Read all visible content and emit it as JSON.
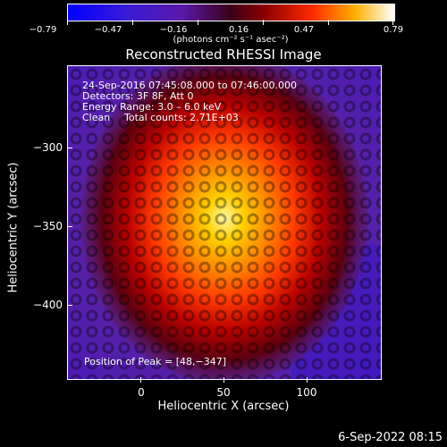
{
  "colorbar": {
    "ticks": [
      "−0.79",
      "−0.47",
      "−0.16",
      "0.16",
      "0.47",
      "0.79"
    ],
    "units": "(photons cm⁻² s⁻¹ asec⁻²)"
  },
  "title": "Reconstructed RHESSI Image",
  "info": {
    "line1": "24-Sep-2016 07:45:08.000 to 07:46:00.000",
    "line2": "Detectors: 3F 8F, Att 0",
    "line3": "Energy Range: 3.0 – 6.0 keV",
    "line4_a": "Clean",
    "line4_b": "Total counts: 2.71E+03"
  },
  "peak_text": "Position of Peak = [48,−347]",
  "axes": {
    "xlabel": "Heliocentric X (arcsec)",
    "ylabel": "Heliocentric Y (arcsec)",
    "xticks": [
      "0",
      "50",
      "100"
    ],
    "yticks": [
      "−300",
      "−350",
      "−400"
    ]
  },
  "footer_timestamp": "6-Sep-2022 08:15",
  "colors": {
    "background": "#000000",
    "text": "#ffffff"
  }
}
